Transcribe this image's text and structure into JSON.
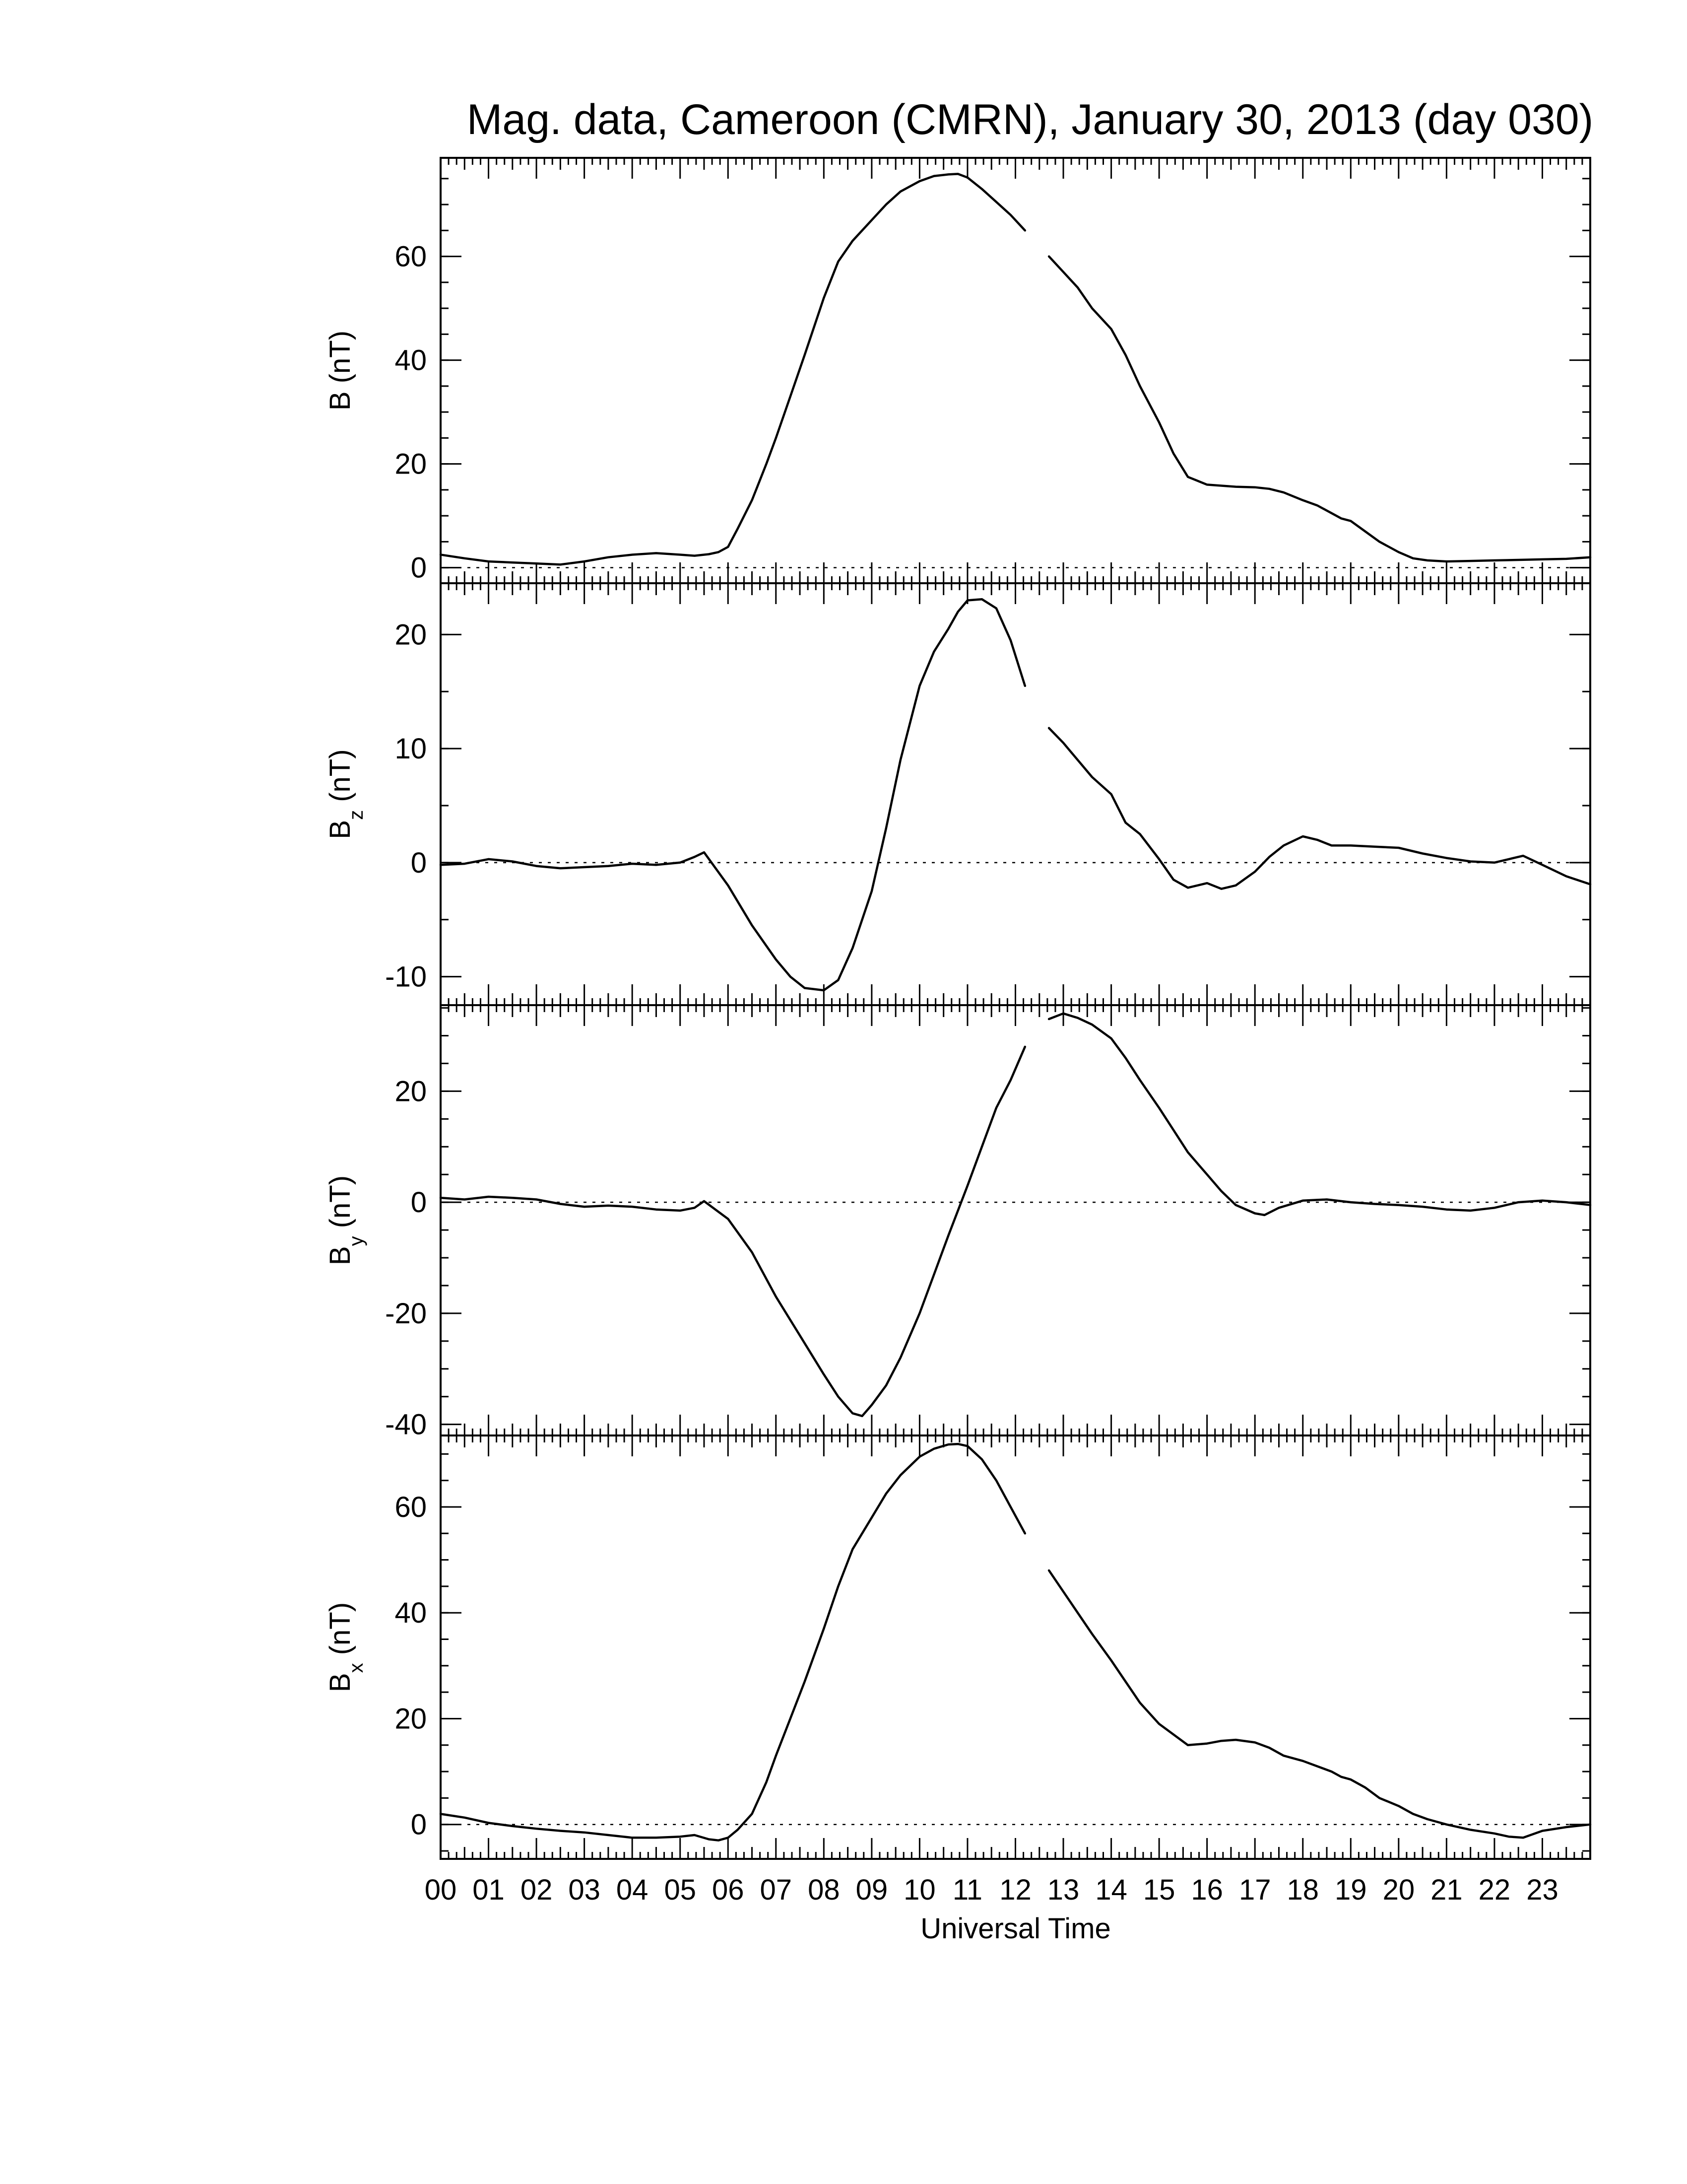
{
  "chart_data": {
    "type": "line",
    "title": "Mag. data, Cameroon (CMRN), January 30, 2013 (day 030)",
    "xlabel": "Universal Time",
    "xlim": [
      0,
      24
    ],
    "x_tick_labels": [
      "00",
      "01",
      "02",
      "03",
      "04",
      "05",
      "06",
      "07",
      "08",
      "09",
      "10",
      "11",
      "12",
      "13",
      "14",
      "15",
      "16",
      "17",
      "18",
      "19",
      "20",
      "21",
      "22",
      "23"
    ],
    "data_gap_hours": [
      12.2,
      12.7
    ],
    "panels": [
      {
        "id": "B",
        "ylabel_main": "B",
        "ylabel_sub": "",
        "ylabel_unit": "(nT)",
        "ylim": [
          -3,
          79
        ],
        "yticks": [
          0,
          20,
          40,
          60
        ],
        "zero_line": true,
        "series": [
          {
            "x": [
              0,
              0.5,
              1,
              1.5,
              2,
              2.5,
              3,
              3.5,
              4,
              4.5,
              5,
              5.3,
              5.6,
              5.8,
              6,
              6.2,
              6.5,
              6.8,
              7,
              7.3,
              7.6,
              8,
              8.3,
              8.6,
              9,
              9.3,
              9.6,
              10,
              10.3,
              10.6,
              10.8,
              11,
              11.3,
              11.6,
              11.9,
              12.2,
              12.7,
              13,
              13.3,
              13.6,
              14,
              14.3,
              14.6,
              15,
              15.3,
              15.6,
              16,
              16.3,
              16.6,
              17,
              17.3,
              17.6,
              18,
              18.3,
              18.6,
              18.8,
              19,
              19.3,
              19.6,
              20,
              20.3,
              20.6,
              21,
              21.5,
              22,
              22.5,
              23,
              23.5,
              24
            ],
            "y": [
              2.5,
              1.8,
              1.2,
              1.0,
              0.8,
              0.6,
              1.2,
              2.0,
              2.5,
              2.8,
              2.5,
              2.3,
              2.6,
              3.0,
              4.0,
              7.5,
              13,
              20,
              25,
              33,
              41,
              52,
              59,
              63,
              67,
              70,
              72.5,
              74.5,
              75.5,
              75.8,
              75.9,
              75.2,
              73,
              70.5,
              68,
              65,
              60,
              57,
              54,
              50,
              46,
              41,
              35,
              28,
              22,
              17.5,
              16,
              15.8,
              15.6,
              15.5,
              15.2,
              14.5,
              13,
              12,
              10.5,
              9.5,
              9,
              7,
              5,
              3,
              1.8,
              1.4,
              1.2,
              1.3,
              1.4,
              1.5,
              1.6,
              1.7,
              2.0
            ],
            "gap_after_index": 35
          }
        ]
      },
      {
        "id": "Bz",
        "ylabel_main": "B",
        "ylabel_sub": "z",
        "ylabel_unit": "(nT)",
        "ylim": [
          -12.5,
          24.5
        ],
        "yticks": [
          -10,
          0,
          10,
          20
        ],
        "zero_line": true,
        "series": [
          {
            "x": [
              0,
              0.5,
              1,
              1.5,
              2,
              2.5,
              3,
              3.5,
              4,
              4.5,
              5,
              5.3,
              5.5,
              6,
              6.5,
              7,
              7.3,
              7.6,
              8,
              8.3,
              8.6,
              9,
              9.3,
              9.6,
              10,
              10.3,
              10.6,
              10.8,
              11,
              11.3,
              11.6,
              11.9,
              12.2,
              12.7,
              13,
              13.3,
              13.6,
              14,
              14.3,
              14.6,
              15,
              15.3,
              15.6,
              16,
              16.3,
              16.6,
              17,
              17.3,
              17.6,
              18,
              18.3,
              18.6,
              19,
              19.5,
              20,
              20.5,
              21,
              21.5,
              22,
              22.3,
              22.6,
              23,
              23.5,
              24
            ],
            "y": [
              -0.2,
              -0.1,
              0.3,
              0.1,
              -0.3,
              -0.5,
              -0.4,
              -0.3,
              -0.1,
              -0.2,
              0.0,
              0.5,
              0.9,
              -2.0,
              -5.5,
              -8.5,
              -10,
              -11,
              -11.2,
              -10.3,
              -7.5,
              -2.5,
              3,
              9,
              15.5,
              18.5,
              20.5,
              22,
              23,
              23.1,
              22.3,
              19.5,
              15.5,
              11.8,
              10.5,
              9,
              7.5,
              6,
              3.5,
              2.5,
              0.3,
              -1.5,
              -2.2,
              -1.8,
              -2.3,
              -2.0,
              -0.8,
              0.5,
              1.5,
              2.3,
              2.0,
              1.5,
              1.5,
              1.4,
              1.3,
              0.8,
              0.4,
              0.1,
              0.0,
              0.3,
              0.6,
              -0.2,
              -1.2,
              -1.9
            ],
            "gap_after_index": 32
          }
        ]
      },
      {
        "id": "By",
        "ylabel_main": "B",
        "ylabel_sub": "y",
        "ylabel_unit": "(nT)",
        "ylim": [
          -42,
          35.5
        ],
        "yticks": [
          -40,
          -20,
          0,
          20
        ],
        "zero_line": true,
        "series": [
          {
            "x": [
              0,
              0.5,
              1,
              1.5,
              2,
              2.5,
              3,
              3.5,
              4,
              4.5,
              5,
              5.3,
              5.5,
              6,
              6.5,
              7,
              7.5,
              8,
              8.3,
              8.6,
              8.8,
              9,
              9.3,
              9.6,
              10,
              10.3,
              10.6,
              11,
              11.3,
              11.6,
              11.9,
              12.2,
              12.7,
              13,
              13.3,
              13.6,
              14,
              14.3,
              14.6,
              15,
              15.3,
              15.6,
              16,
              16.3,
              16.6,
              17,
              17.2,
              17.5,
              18,
              18.5,
              19,
              19.5,
              20,
              20.5,
              21,
              21.5,
              22,
              22.5,
              23,
              23.5,
              24
            ],
            "y": [
              0.8,
              0.5,
              1.0,
              0.8,
              0.5,
              -0.3,
              -0.8,
              -0.6,
              -0.8,
              -1.3,
              -1.5,
              -1.0,
              0.2,
              -3,
              -9,
              -17,
              -24,
              -31,
              -35,
              -38,
              -38.5,
              -36.5,
              -33,
              -28,
              -20,
              -13,
              -6,
              3,
              10,
              17,
              22,
              28,
              33,
              34,
              33.2,
              32,
              29.5,
              26,
              22,
              17,
              13,
              9,
              5,
              2,
              -0.5,
              -2.0,
              -2.3,
              -1.0,
              0.3,
              0.5,
              0.0,
              -0.3,
              -0.5,
              -0.8,
              -1.3,
              -1.5,
              -1.0,
              0.0,
              0.3,
              0.0,
              -0.5
            ],
            "gap_after_index": 31
          }
        ]
      },
      {
        "id": "Bx",
        "ylabel_main": "B",
        "ylabel_sub": "x",
        "ylabel_unit": "(nT)",
        "ylim": [
          -6.5,
          73.5
        ],
        "yticks": [
          0,
          20,
          40,
          60
        ],
        "zero_line": true,
        "series": [
          {
            "x": [
              0,
              0.5,
              1,
              1.5,
              2,
              2.5,
              3,
              3.5,
              4,
              4.5,
              5,
              5.3,
              5.6,
              5.8,
              6,
              6.2,
              6.5,
              6.8,
              7,
              7.3,
              7.6,
              8,
              8.3,
              8.6,
              9,
              9.3,
              9.6,
              10,
              10.3,
              10.6,
              10.8,
              11,
              11.3,
              11.6,
              11.9,
              12.2,
              12.7,
              13,
              13.3,
              13.6,
              14,
              14.3,
              14.6,
              15,
              15.3,
              15.6,
              16,
              16.3,
              16.6,
              17,
              17.3,
              17.6,
              18,
              18.3,
              18.6,
              18.8,
              19,
              19.3,
              19.6,
              20,
              20.3,
              20.6,
              21,
              21.5,
              22,
              22.3,
              22.6,
              23,
              23.5,
              24
            ],
            "y": [
              2.0,
              1.3,
              0.3,
              -0.3,
              -0.8,
              -1.2,
              -1.5,
              -2.0,
              -2.5,
              -2.5,
              -2.3,
              -2.0,
              -2.8,
              -3.0,
              -2.5,
              -1.0,
              2.0,
              8,
              13,
              20,
              27,
              37,
              45,
              52,
              58,
              62.5,
              66,
              69.5,
              71,
              71.8,
              71.9,
              71.5,
              69,
              65,
              60,
              55,
              48,
              44,
              40,
              36,
              31,
              27,
              23,
              19,
              17,
              15,
              15.3,
              15.8,
              16,
              15.5,
              14.5,
              13,
              12,
              11,
              10,
              9,
              8.5,
              7,
              5,
              3.5,
              2.0,
              1.0,
              0.0,
              -1.0,
              -1.7,
              -2.3,
              -2.5,
              -1.2,
              -0.5,
              0.0
            ],
            "gap_after_index": 35
          }
        ]
      }
    ]
  }
}
